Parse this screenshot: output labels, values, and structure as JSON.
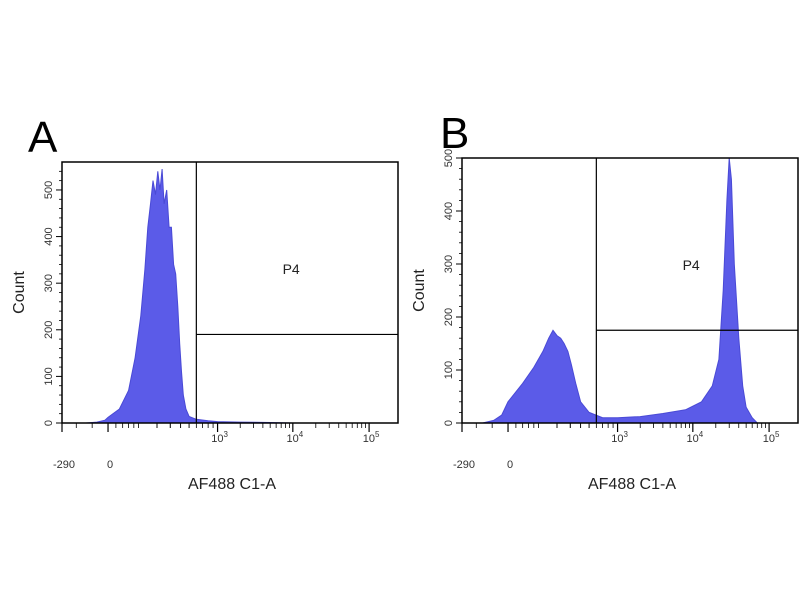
{
  "chart_data": [
    {
      "type": "area",
      "panel": "A",
      "xlabel": "AF488 C1-A",
      "ylabel": "Count",
      "xscale": "biexponential",
      "x_tick_labels": [
        "-290",
        "0",
        "10",
        "10",
        "10"
      ],
      "x_tick_exponents": [
        "",
        "",
        "3",
        "4",
        "5"
      ],
      "x_tick_values": [
        -290,
        0,
        1000,
        10000,
        100000
      ],
      "y_tick_labels": [
        "0",
        "100",
        "200",
        "300",
        "400",
        "500"
      ],
      "y_tick_values": [
        0,
        100,
        200,
        300,
        400,
        500
      ],
      "ylim": [
        0,
        560
      ],
      "gate": {
        "label": "P4",
        "x_min": 600,
        "level": 190
      },
      "color": "#5b5be8",
      "series": [
        {
          "values": [
            [
              -140,
              0
            ],
            [
              -70,
              2
            ],
            [
              -20,
              6
            ],
            [
              0,
              12
            ],
            [
              30,
              30
            ],
            [
              60,
              70
            ],
            [
              85,
              140
            ],
            [
              110,
              230
            ],
            [
              130,
              330
            ],
            [
              145,
              420
            ],
            [
              160,
              470
            ],
            [
              175,
              520
            ],
            [
              190,
              490
            ],
            [
              205,
              540
            ],
            [
              220,
              500
            ],
            [
              235,
              545
            ],
            [
              250,
              470
            ],
            [
              270,
              500
            ],
            [
              290,
              420
            ],
            [
              310,
              420
            ],
            [
              330,
              340
            ],
            [
              350,
              320
            ],
            [
              370,
              250
            ],
            [
              390,
              170
            ],
            [
              410,
              110
            ],
            [
              430,
              60
            ],
            [
              460,
              30
            ],
            [
              500,
              14
            ],
            [
              600,
              8
            ],
            [
              800,
              5
            ],
            [
              1000,
              3
            ],
            [
              2000,
              2
            ],
            [
              5000,
              1
            ],
            [
              10000,
              0
            ],
            [
              100000,
              0
            ]
          ]
        }
      ]
    },
    {
      "type": "area",
      "panel": "B",
      "xlabel": "AF488 C1-A",
      "ylabel": "Count",
      "xscale": "biexponential",
      "x_tick_labels": [
        "-290",
        "0",
        "10",
        "10",
        "10"
      ],
      "x_tick_exponents": [
        "",
        "",
        "3",
        "4",
        "5"
      ],
      "x_tick_values": [
        -290,
        0,
        1000,
        10000,
        100000
      ],
      "y_tick_labels": [
        "0",
        "100",
        "200",
        "300",
        "400",
        "500"
      ],
      "y_tick_values": [
        0,
        100,
        200,
        300,
        400,
        500
      ],
      "ylim": [
        0,
        500
      ],
      "gate": {
        "label": "P4",
        "x_min": 600,
        "level": 175
      },
      "color": "#5b5be8",
      "series": [
        {
          "values": [
            [
              -160,
              0
            ],
            [
              -90,
              5
            ],
            [
              -40,
              15
            ],
            [
              0,
              40
            ],
            [
              40,
              75
            ],
            [
              80,
              105
            ],
            [
              120,
              135
            ],
            [
              150,
              160
            ],
            [
              175,
              175
            ],
            [
              200,
              165
            ],
            [
              225,
              160
            ],
            [
              250,
              150
            ],
            [
              280,
              135
            ],
            [
              310,
              110
            ],
            [
              350,
              75
            ],
            [
              400,
              40
            ],
            [
              500,
              20
            ],
            [
              700,
              10
            ],
            [
              1000,
              10
            ],
            [
              2000,
              12
            ],
            [
              4000,
              18
            ],
            [
              8000,
              25
            ],
            [
              13000,
              40
            ],
            [
              18000,
              70
            ],
            [
              22000,
              120
            ],
            [
              25000,
              250
            ],
            [
              28000,
              420
            ],
            [
              30000,
              500
            ],
            [
              32000,
              460
            ],
            [
              35000,
              300
            ],
            [
              40000,
              160
            ],
            [
              45000,
              70
            ],
            [
              50000,
              30
            ],
            [
              60000,
              10
            ],
            [
              70000,
              0
            ],
            [
              100000,
              0
            ]
          ]
        }
      ]
    }
  ]
}
